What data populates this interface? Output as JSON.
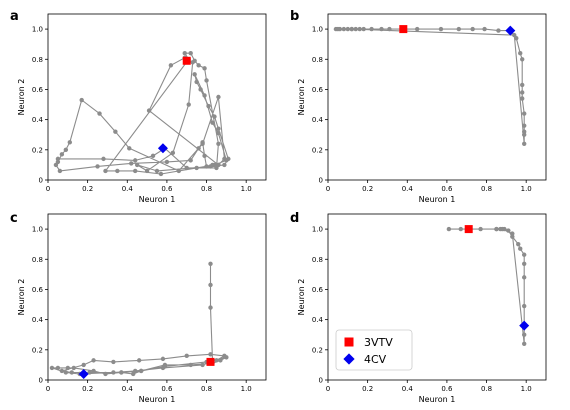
{
  "chart_data": [
    {
      "panel": "a",
      "type": "line",
      "xlabel": "Neuron 1",
      "ylabel": "Neuron 2",
      "xlim": [
        0,
        1.1
      ],
      "ylim": [
        0,
        1.1
      ],
      "xticks": [
        0,
        0.2,
        0.4,
        0.6,
        0.8,
        1.0
      ],
      "yticks": [
        0,
        0.2,
        0.4,
        0.6,
        0.8,
        1.0
      ],
      "tick_labels": [
        "0",
        "0.2",
        "0.4",
        "0.6",
        "0.8",
        "1.0"
      ],
      "trajectory": [
        [
          0.05,
          0.12
        ],
        [
          0.07,
          0.17
        ],
        [
          0.09,
          0.2
        ],
        [
          0.11,
          0.25
        ],
        [
          0.17,
          0.53
        ],
        [
          0.26,
          0.44
        ],
        [
          0.34,
          0.32
        ],
        [
          0.41,
          0.21
        ],
        [
          0.66,
          0.06
        ],
        [
          0.78,
          0.24
        ],
        [
          0.86,
          0.55
        ],
        [
          0.89,
          0.14
        ],
        [
          0.86,
          0.1
        ],
        [
          0.51,
          0.46
        ],
        [
          0.62,
          0.76
        ],
        [
          0.69,
          0.81
        ],
        [
          0.73,
          0.78
        ],
        [
          0.71,
          0.5
        ],
        [
          0.63,
          0.18
        ],
        [
          0.5,
          0.06
        ],
        [
          0.45,
          0.1
        ],
        [
          0.55,
          0.06
        ],
        [
          0.82,
          0.09
        ],
        [
          0.89,
          0.1
        ],
        [
          0.91,
          0.14
        ],
        [
          0.86,
          0.34
        ],
        [
          0.84,
          0.42
        ],
        [
          0.81,
          0.49
        ],
        [
          0.77,
          0.6
        ],
        [
          0.75,
          0.65
        ],
        [
          0.74,
          0.7
        ],
        [
          0.79,
          0.56
        ],
        [
          0.83,
          0.38
        ],
        [
          0.86,
          0.31
        ],
        [
          0.9,
          0.13
        ],
        [
          0.84,
          0.1
        ],
        [
          0.75,
          0.08
        ],
        [
          0.57,
          0.04
        ],
        [
          0.44,
          0.06
        ],
        [
          0.35,
          0.06
        ],
        [
          0.29,
          0.06
        ],
        [
          0.71,
          0.8
        ],
        [
          0.69,
          0.84
        ],
        [
          0.72,
          0.84
        ],
        [
          0.74,
          0.79
        ],
        [
          0.76,
          0.76
        ],
        [
          0.79,
          0.74
        ],
        [
          0.8,
          0.66
        ],
        [
          0.86,
          0.24
        ],
        [
          0.85,
          0.08
        ],
        [
          0.7,
          0.08
        ],
        [
          0.59,
          0.21
        ],
        [
          0.53,
          0.16
        ],
        [
          0.44,
          0.13
        ],
        [
          0.28,
          0.14
        ],
        [
          0.05,
          0.14
        ],
        [
          0.04,
          0.1
        ],
        [
          0.06,
          0.06
        ],
        [
          0.25,
          0.09
        ],
        [
          0.42,
          0.11
        ],
        [
          0.6,
          0.12
        ],
        [
          0.72,
          0.13
        ],
        [
          0.76,
          0.21
        ],
        [
          0.78,
          0.25
        ],
        [
          0.79,
          0.16
        ],
        [
          0.8,
          0.09
        ],
        [
          0.83,
          0.1
        ]
      ],
      "markers": [
        {
          "series": "3VTV",
          "shape": "square",
          "color": "#ff0000",
          "x": 0.7,
          "y": 0.79
        },
        {
          "series": "4CV",
          "shape": "diamond",
          "color": "#0000ee",
          "x": 0.58,
          "y": 0.21
        }
      ]
    },
    {
      "panel": "b",
      "type": "line",
      "xlabel": "Neuron 1",
      "ylabel": "Neuron 2",
      "xlim": [
        0,
        1.1
      ],
      "ylim": [
        0,
        1.1
      ],
      "xticks": [
        0,
        0.2,
        0.4,
        0.6,
        0.8,
        1.0
      ],
      "yticks": [
        0,
        0.2,
        0.4,
        0.6,
        0.8,
        1.0
      ],
      "tick_labels": [
        "0",
        "0.2",
        "0.4",
        "0.6",
        "0.8",
        "1.0"
      ],
      "trajectory": [
        [
          0.04,
          1.0
        ],
        [
          0.06,
          1.0
        ],
        [
          0.08,
          1.0
        ],
        [
          0.1,
          1.0
        ],
        [
          0.12,
          1.0
        ],
        [
          0.14,
          1.0
        ],
        [
          0.16,
          1.0
        ],
        [
          0.18,
          1.0
        ],
        [
          0.22,
          1.0
        ],
        [
          0.27,
          1.0
        ],
        [
          0.31,
          1.0
        ],
        [
          0.38,
          1.0
        ],
        [
          0.45,
          1.0
        ],
        [
          0.57,
          1.0
        ],
        [
          0.66,
          1.0
        ],
        [
          0.73,
          1.0
        ],
        [
          0.79,
          1.0
        ],
        [
          0.86,
          0.99
        ],
        [
          0.92,
          0.99
        ],
        [
          0.95,
          0.94
        ],
        [
          0.97,
          0.84
        ],
        [
          0.98,
          0.8
        ],
        [
          0.98,
          0.63
        ],
        [
          0.98,
          0.58
        ],
        [
          0.98,
          0.54
        ],
        [
          0.99,
          0.44
        ],
        [
          0.99,
          0.36
        ],
        [
          0.99,
          0.32
        ],
        [
          0.99,
          0.3
        ],
        [
          0.99,
          0.24
        ],
        [
          0.94,
          0.96
        ],
        [
          0.12,
          1.0
        ],
        [
          0.05,
          1.0
        ]
      ],
      "markers": [
        {
          "series": "3VTV",
          "shape": "square",
          "color": "#ff0000",
          "x": 0.38,
          "y": 1.0
        },
        {
          "series": "4CV",
          "shape": "diamond",
          "color": "#0000ee",
          "x": 0.92,
          "y": 0.99
        }
      ]
    },
    {
      "panel": "c",
      "type": "line",
      "xlabel": "Neuron 1",
      "ylabel": "Neuron 2",
      "xlim": [
        0,
        1.1
      ],
      "ylim": [
        0,
        1.1
      ],
      "xticks": [
        0,
        0.2,
        0.4,
        0.6,
        0.8,
        1.0
      ],
      "yticks": [
        0,
        0.2,
        0.4,
        0.6,
        0.8,
        1.0
      ],
      "tick_labels": [
        "0",
        "0.2",
        "0.4",
        "0.6",
        "0.8",
        "1.0"
      ],
      "trajectory": [
        [
          0.82,
          0.77
        ],
        [
          0.82,
          0.63
        ],
        [
          0.82,
          0.48
        ],
        [
          0.83,
          0.13
        ],
        [
          0.9,
          0.15
        ],
        [
          0.87,
          0.13
        ],
        [
          0.83,
          0.11
        ],
        [
          0.72,
          0.1
        ],
        [
          0.59,
          0.1
        ],
        [
          0.47,
          0.06
        ],
        [
          0.37,
          0.05
        ],
        [
          0.29,
          0.04
        ],
        [
          0.23,
          0.06
        ],
        [
          0.13,
          0.08
        ],
        [
          0.1,
          0.08
        ],
        [
          0.05,
          0.08
        ],
        [
          0.02,
          0.08
        ],
        [
          0.09,
          0.05
        ],
        [
          0.16,
          0.04
        ],
        [
          0.33,
          0.05
        ],
        [
          0.44,
          0.06
        ],
        [
          0.58,
          0.08
        ],
        [
          0.78,
          0.1
        ],
        [
          0.85,
          0.13
        ],
        [
          0.89,
          0.16
        ],
        [
          0.82,
          0.17
        ],
        [
          0.7,
          0.16
        ],
        [
          0.58,
          0.14
        ],
        [
          0.46,
          0.13
        ],
        [
          0.33,
          0.12
        ],
        [
          0.23,
          0.13
        ],
        [
          0.18,
          0.1
        ],
        [
          0.07,
          0.06
        ],
        [
          0.12,
          0.05
        ],
        [
          0.21,
          0.05
        ],
        [
          0.37,
          0.05
        ],
        [
          0.43,
          0.04
        ],
        [
          0.47,
          0.06
        ],
        [
          0.59,
          0.09
        ],
        [
          0.8,
          0.12
        ]
      ],
      "markers": [
        {
          "series": "3VTV",
          "shape": "square",
          "color": "#ff0000",
          "x": 0.82,
          "y": 0.12
        },
        {
          "series": "4CV",
          "shape": "diamond",
          "color": "#0000ee",
          "x": 0.18,
          "y": 0.04
        }
      ]
    },
    {
      "panel": "d",
      "type": "line",
      "xlabel": "Neuron 1",
      "ylabel": "Neuron 2",
      "xlim": [
        0,
        1.1
      ],
      "ylim": [
        0,
        1.1
      ],
      "xticks": [
        0,
        0.2,
        0.4,
        0.6,
        0.8,
        1.0
      ],
      "yticks": [
        0,
        0.2,
        0.4,
        0.6,
        0.8,
        1.0
      ],
      "tick_labels": [
        "0",
        "0.2",
        "0.4",
        "0.6",
        "0.8",
        "1.0"
      ],
      "trajectory": [
        [
          0.61,
          1.0
        ],
        [
          0.67,
          1.0
        ],
        [
          0.71,
          1.0
        ],
        [
          0.77,
          1.0
        ],
        [
          0.85,
          1.0
        ],
        [
          0.87,
          1.0
        ],
        [
          0.89,
          1.0
        ],
        [
          0.91,
          0.99
        ],
        [
          0.93,
          0.95
        ],
        [
          0.96,
          0.9
        ],
        [
          0.97,
          0.87
        ],
        [
          0.99,
          0.83
        ],
        [
          0.99,
          0.77
        ],
        [
          0.99,
          0.68
        ],
        [
          0.99,
          0.49
        ],
        [
          0.99,
          0.36
        ],
        [
          0.99,
          0.3
        ],
        [
          0.99,
          0.24
        ],
        [
          0.93,
          0.97
        ],
        [
          0.88,
          1.0
        ],
        [
          0.85,
          1.0
        ]
      ],
      "markers": [
        {
          "series": "3VTV",
          "shape": "square",
          "color": "#ff0000",
          "x": 0.71,
          "y": 1.0
        },
        {
          "series": "4CV",
          "shape": "diamond",
          "color": "#0000ee",
          "x": 0.99,
          "y": 0.36
        }
      ],
      "legend": {
        "placement": "lower-left",
        "entries": [
          {
            "label": "3VTV",
            "shape": "square",
            "color": "#ff0000"
          },
          {
            "label": "4CV",
            "shape": "diamond",
            "color": "#0000ee"
          }
        ]
      }
    }
  ],
  "style": {
    "line_color": "#8c8c8c",
    "point_color": "#8c8c8c",
    "axis_color": "#000000",
    "background": "#ffffff"
  }
}
